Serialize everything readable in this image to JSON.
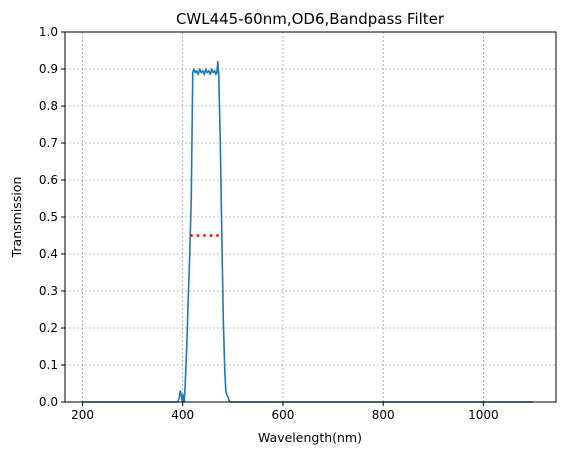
{
  "chart_data": {
    "type": "line",
    "title": "CWL445-60nm,OD6,Bandpass Filter",
    "xlabel": "Wavelength(nm)",
    "ylabel": "Transmission",
    "xlim": [
      165,
      1145
    ],
    "ylim": [
      0,
      1.0
    ],
    "xticks": [
      200,
      400,
      600,
      800,
      1000
    ],
    "yticks": [
      0.0,
      0.1,
      0.2,
      0.3,
      0.4,
      0.5,
      0.6,
      0.7,
      0.8,
      0.9,
      1.0
    ],
    "ytick_labels": [
      "0.0",
      "0.1",
      "0.2",
      "0.3",
      "0.4",
      "0.5",
      "0.6",
      "0.7",
      "0.8",
      "0.9",
      "1.0"
    ],
    "grid": true,
    "series": [
      {
        "color": "#1f77b4",
        "style": "solid",
        "x": [
          200,
          390,
          393,
          395,
          397,
          399,
          401,
          403,
          405,
          408,
          411,
          414,
          417,
          420,
          422,
          425,
          428,
          431,
          434,
          437,
          440,
          443,
          446,
          449,
          452,
          455,
          458,
          461,
          464,
          466,
          468,
          470,
          472,
          475,
          478,
          481,
          484,
          486,
          488,
          490,
          492,
          495,
          500,
          600,
          800,
          1100
        ],
        "y": [
          0.0,
          0.0,
          0.01,
          0.03,
          0.02,
          0.0,
          0.02,
          0.0,
          0.05,
          0.15,
          0.28,
          0.4,
          0.55,
          0.89,
          0.9,
          0.89,
          0.895,
          0.885,
          0.9,
          0.89,
          0.895,
          0.885,
          0.9,
          0.89,
          0.895,
          0.885,
          0.9,
          0.89,
          0.895,
          0.885,
          0.89,
          0.92,
          0.88,
          0.7,
          0.45,
          0.22,
          0.08,
          0.03,
          0.02,
          0.015,
          0.005,
          0.0,
          0.0,
          0.0,
          0.0,
          0.0
        ]
      },
      {
        "color": "#ff0000",
        "style": "dotted",
        "x": [
          415,
          475
        ],
        "y": [
          0.45,
          0.45
        ]
      }
    ]
  }
}
